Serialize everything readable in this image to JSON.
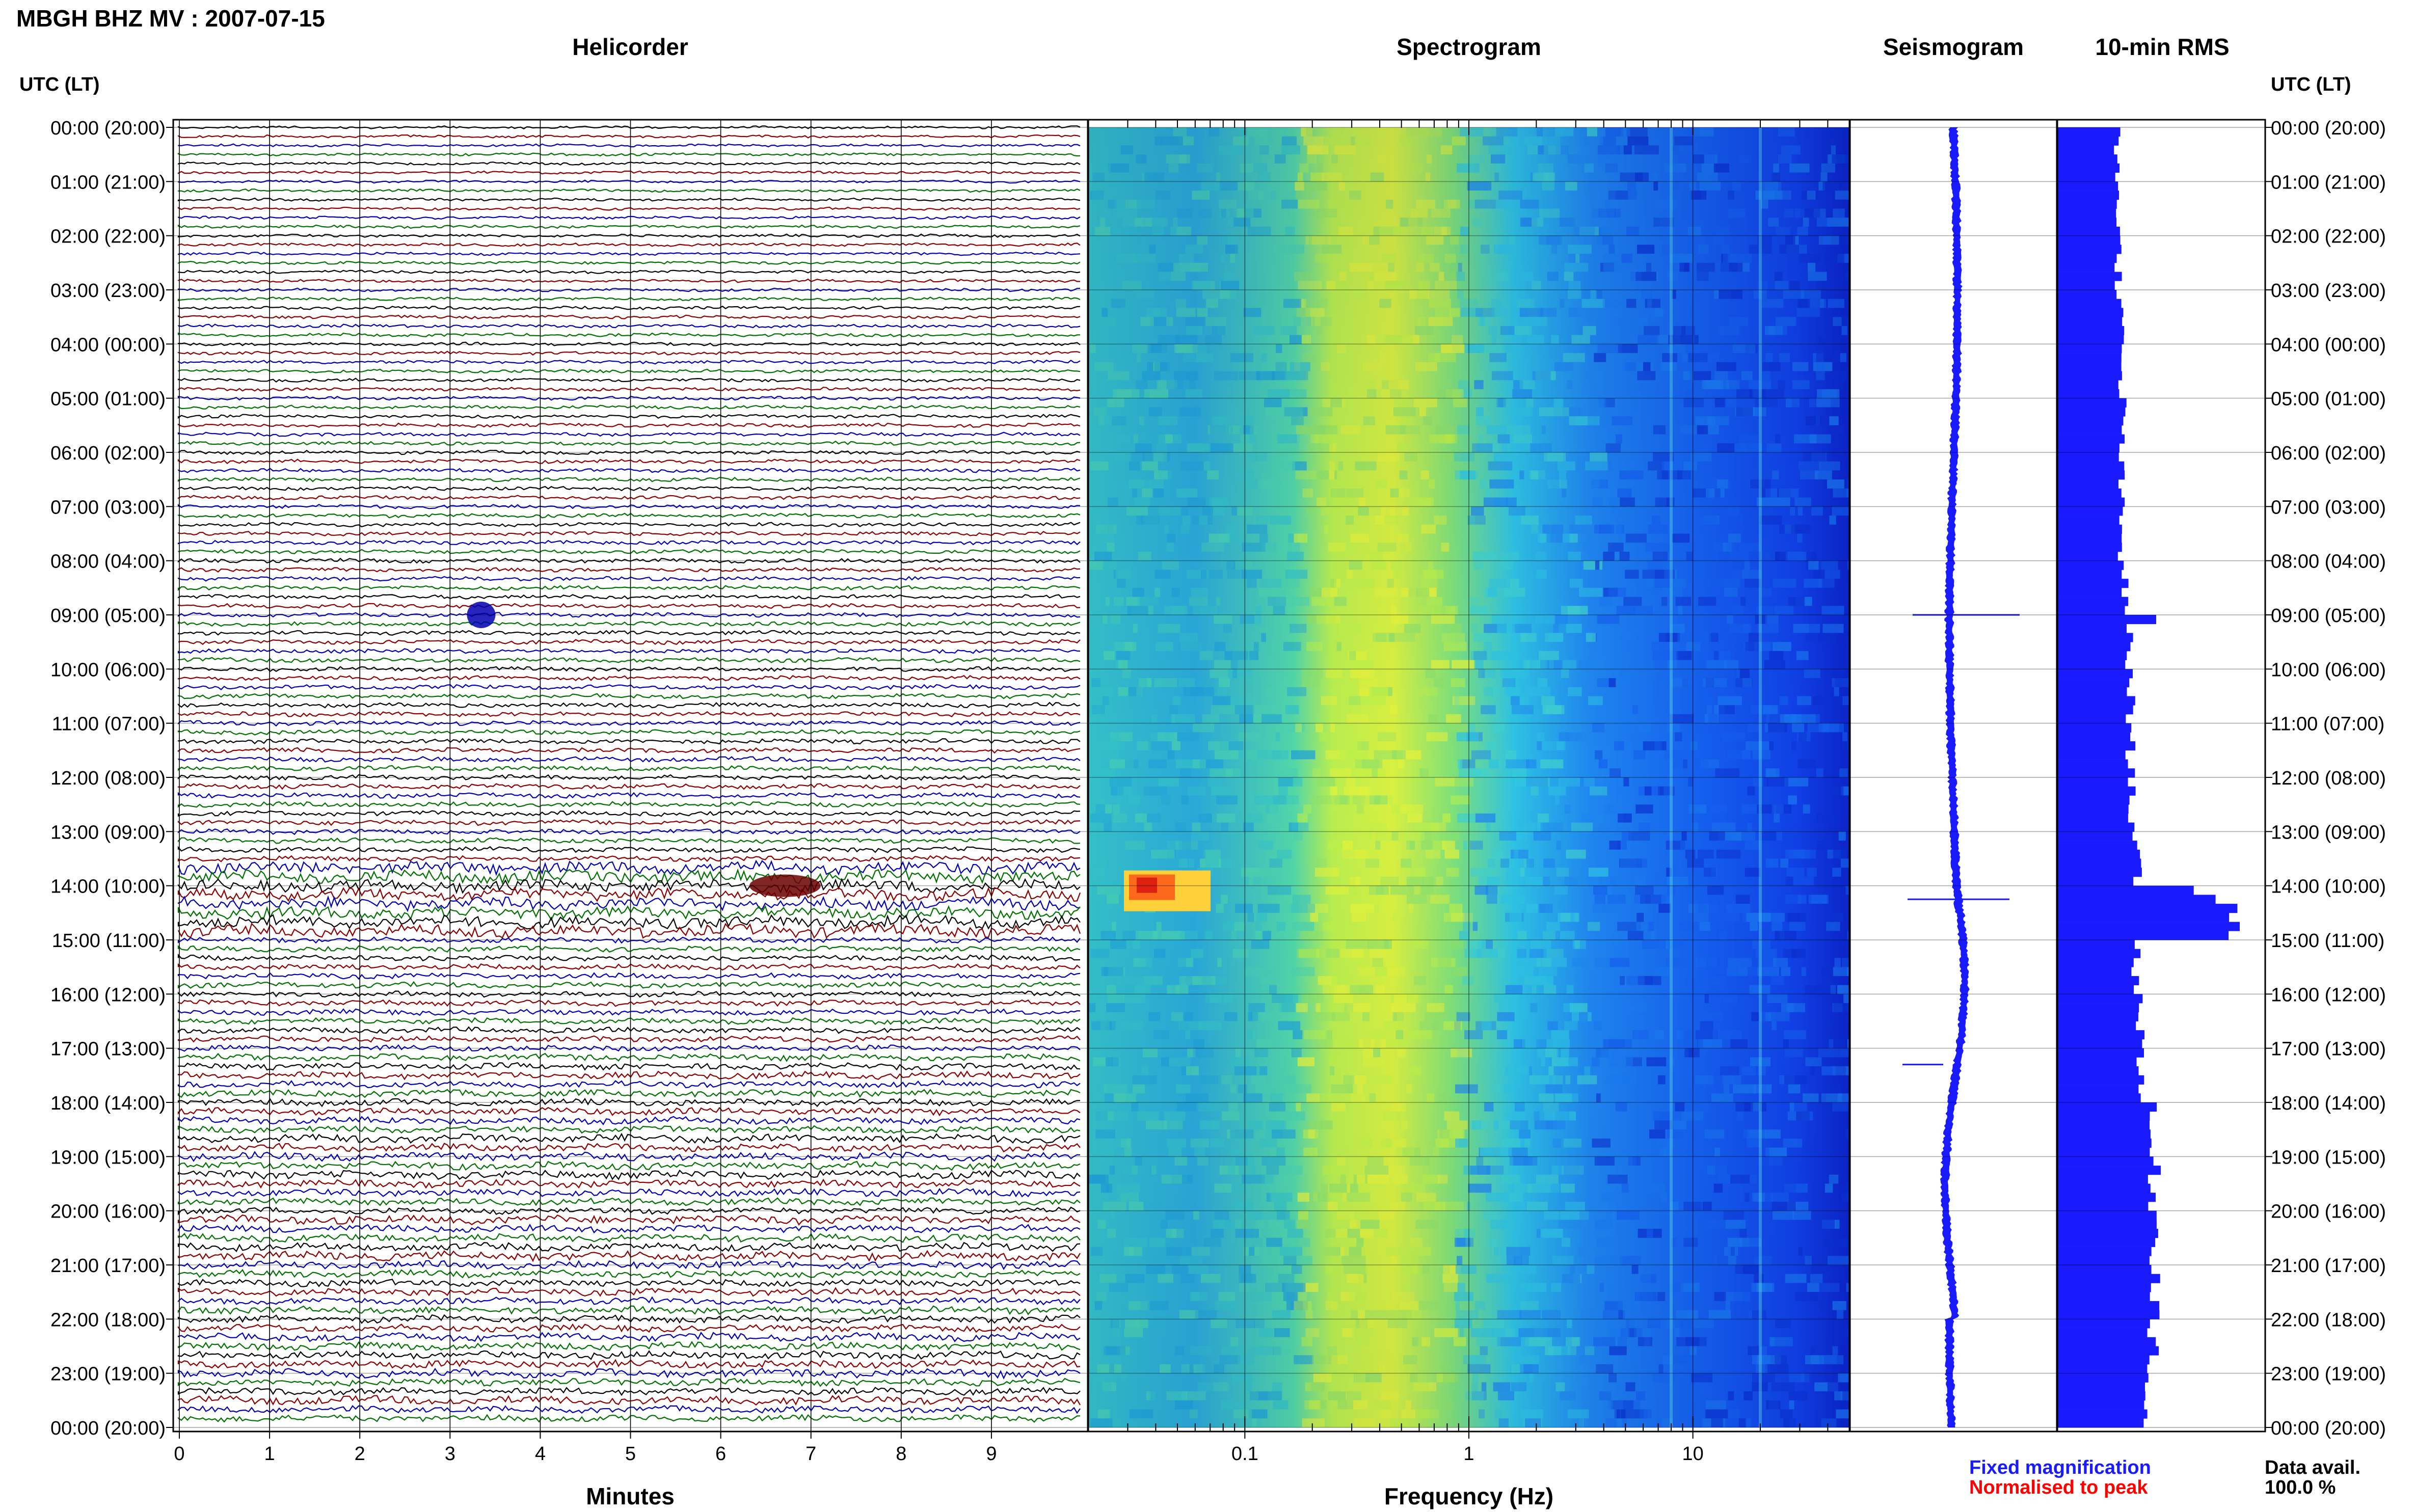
{
  "header": {
    "station_title": "MBGH BHZ MV : 2007-07-15",
    "utc_lt_left": "UTC (LT)",
    "utc_lt_right": "UTC (LT)"
  },
  "panels": {
    "helicorder": {
      "title": "Helicorder",
      "xlabel": "Minutes"
    },
    "spectrogram": {
      "title": "Spectrogram",
      "xlabel": "Frequency (Hz)"
    },
    "seismogram": {
      "title": "Seismogram"
    },
    "rms": {
      "title": "10-min RMS"
    }
  },
  "legend": {
    "fixed": "Fixed magnification",
    "normalised": "Normalised to peak",
    "data_avail_label": "Data avail.",
    "data_avail_value": "100.0 %"
  },
  "colors": {
    "trace_colors": [
      "#000000",
      "#8b0000",
      "#0000b0",
      "#007000"
    ],
    "fixed_magnification": "#1a1aff",
    "normalised_to_peak": "#ff0000",
    "rms_fill": "#1a1aff",
    "seismogram": "#1a1aff"
  },
  "time_labels": [
    "00:00 (20:00)",
    "01:00 (21:00)",
    "02:00 (22:00)",
    "03:00 (23:00)",
    "04:00 (00:00)",
    "05:00 (01:00)",
    "06:00 (02:00)",
    "07:00 (03:00)",
    "08:00 (04:00)",
    "09:00 (05:00)",
    "10:00 (06:00)",
    "11:00 (07:00)",
    "12:00 (08:00)",
    "13:00 (09:00)",
    "14:00 (10:00)",
    "15:00 (11:00)",
    "16:00 (12:00)",
    "17:00 (13:00)",
    "18:00 (14:00)",
    "19:00 (15:00)",
    "20:00 (16:00)",
    "21:00 (17:00)",
    "22:00 (18:00)",
    "23:00 (19:00)",
    "00:00 (20:00)"
  ],
  "minute_ticks": [
    "0",
    "1",
    "2",
    "3",
    "4",
    "5",
    "6",
    "7",
    "8",
    "9"
  ],
  "freq_ticks": [
    "0.1",
    "1",
    "10"
  ],
  "chart_data": {
    "type": "heatmap",
    "date": "2007-07-15",
    "station": "MBGH BHZ MV",
    "helicorder": {
      "minutes_per_line": 10,
      "lines": 144,
      "xlim": [
        0,
        10
      ]
    },
    "spectrogram": {
      "freq_scale": "log",
      "xlim_hz": [
        0.02,
        50
      ]
    },
    "rms_10min": {
      "hours": [
        0,
        1,
        2,
        3,
        4,
        5,
        6,
        7,
        8,
        9,
        10,
        11,
        12,
        13,
        14,
        15,
        16,
        17,
        18,
        19,
        20,
        21,
        22,
        23
      ],
      "relative_values": [
        0.3,
        0.31,
        0.31,
        0.32,
        0.32,
        0.33,
        0.32,
        0.32,
        0.34,
        0.36,
        0.37,
        0.37,
        0.38,
        0.4,
        0.92,
        0.4,
        0.42,
        0.43,
        0.47,
        0.49,
        0.5,
        0.5,
        0.48,
        0.45
      ],
      "peak_hour": 14
    },
    "events": [
      {
        "time_utc": "09:00",
        "helicorder_minute": 3.3,
        "type": "spike"
      },
      {
        "time_utc": "14:00",
        "helicorder_minute": 6.6,
        "type": "large event"
      },
      {
        "time_utc": "17:00",
        "type": "small events"
      }
    ]
  }
}
